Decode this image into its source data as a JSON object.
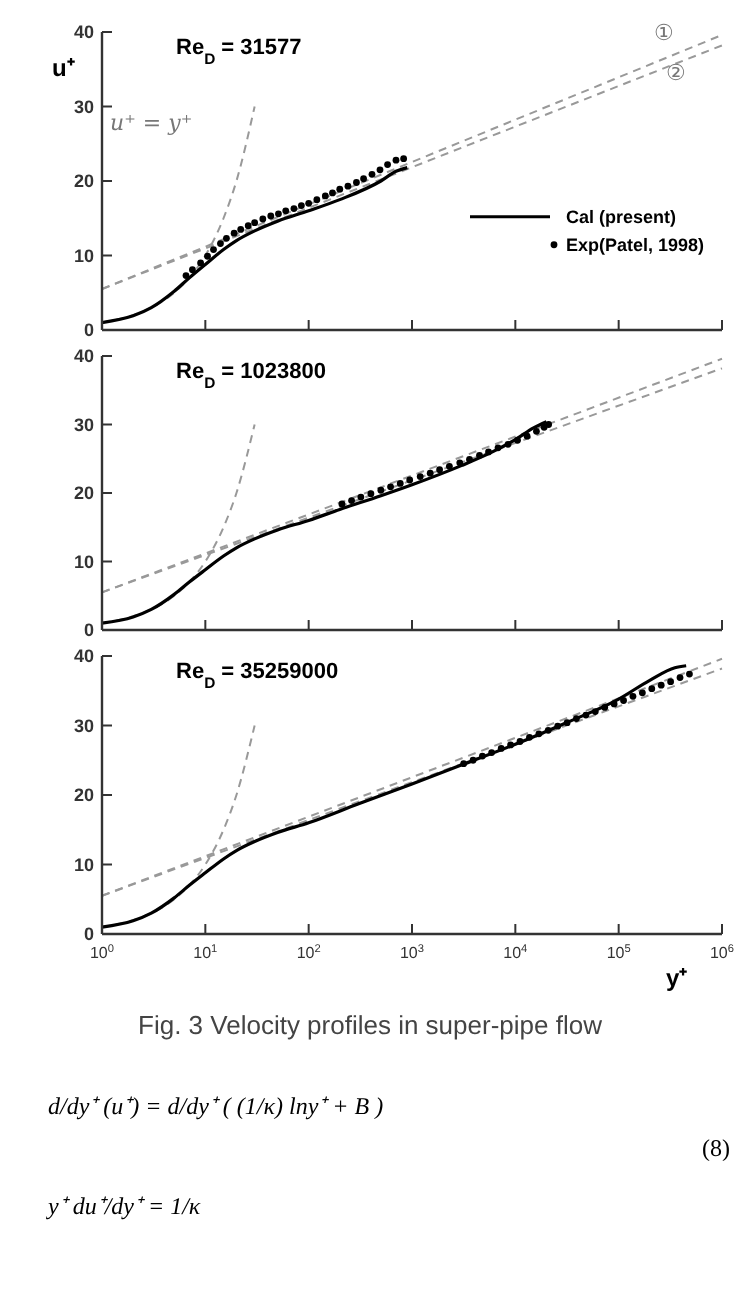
{
  "chart_data": [
    {
      "type": "line",
      "title": "Re$_{D}$ = 31577",
      "ylabel": "u⁺",
      "log": "x",
      "xlim": [
        1,
        1000000
      ],
      "ylim": [
        0,
        40
      ],
      "xticks": [
        {
          "value": 1,
          "label": null
        },
        {
          "value": 10,
          "label": null
        },
        {
          "value": 100,
          "label": null
        },
        {
          "value": 1000,
          "label": null
        },
        {
          "value": 10000,
          "label": null
        },
        {
          "value": 100000,
          "label": null
        },
        {
          "value": 1000000,
          "label": null
        }
      ],
      "yticks": [
        0,
        10,
        20,
        30,
        40
      ],
      "tick_labels": "y",
      "legend": "right",
      "annotations": [
        "u⁺ = y⁺",
        "①",
        "②"
      ],
      "series": [
        {
          "color": "#999999",
          "line_style": "dashed",
          "x": [
            1,
            1.5,
            2,
            3,
            5,
            7,
            10,
            15,
            20,
            30
          ],
          "values": [
            1,
            1.5,
            2,
            3,
            5,
            7,
            10,
            15,
            20,
            30
          ]
        },
        {
          "color": "#999999",
          "line_style": "dashed",
          "x": [
            1,
            1000000
          ],
          "values": [
            5.5,
            39.6
          ]
        },
        {
          "color": "#999999",
          "line_style": "dashed",
          "x": [
            1,
            1000000
          ],
          "values": [
            5.5,
            38.2
          ]
        },
        {
          "name": "Cal (present)",
          "color": "#000000",
          "line_style": "solid",
          "x": [
            1,
            2,
            3,
            5,
            7,
            10,
            15,
            20,
            30,
            50,
            100,
            200,
            500,
            700,
            900
          ],
          "values": [
            1,
            1.9,
            3,
            5.2,
            7,
            8.8,
            10.8,
            12,
            13.3,
            14.6,
            16,
            17.5,
            20,
            21.3,
            21.8
          ]
        },
        {
          "type": "scatter",
          "name": "Exp(Patel, 1998)",
          "color": "#000000",
          "marker": "circle",
          "x": [
            6.5,
            7.5,
            9,
            10.5,
            12,
            14,
            16,
            19,
            22,
            26,
            30,
            36,
            43,
            51,
            60,
            72,
            85,
            100,
            120,
            145,
            170,
            200,
            240,
            290,
            340,
            410,
            490,
            580,
            700,
            830
          ],
          "values": [
            7.3,
            8.1,
            9,
            9.9,
            10.8,
            11.6,
            12.3,
            13,
            13.5,
            14,
            14.4,
            14.9,
            15.3,
            15.6,
            16,
            16.3,
            16.7,
            17,
            17.5,
            18,
            18.4,
            18.9,
            19.3,
            19.8,
            20.3,
            20.9,
            21.5,
            22.2,
            22.8,
            23
          ]
        }
      ]
    },
    {
      "type": "line",
      "title": "Re$_{D}$ = 1023800",
      "log": "x",
      "xlim": [
        1,
        1000000
      ],
      "ylim": [
        0,
        40
      ],
      "xticks": [
        {
          "value": 1,
          "label": null
        },
        {
          "value": 10,
          "label": null
        },
        {
          "value": 100,
          "label": null
        },
        {
          "value": 1000,
          "label": null
        },
        {
          "value": 10000,
          "label": null
        },
        {
          "value": 100000,
          "label": null
        },
        {
          "value": 1000000,
          "label": null
        }
      ],
      "yticks": [
        0,
        10,
        20,
        30,
        40
      ],
      "tick_labels": "y",
      "series": [
        {
          "color": "#999999",
          "line_style": "dashed",
          "x": [
            1,
            1.5,
            2,
            3,
            5,
            7,
            10,
            15,
            20,
            30
          ],
          "values": [
            1,
            1.5,
            2,
            3,
            5,
            7,
            10,
            15,
            20,
            30
          ]
        },
        {
          "color": "#999999",
          "line_style": "dashed",
          "x": [
            1,
            1000000
          ],
          "values": [
            5.5,
            39.6
          ]
        },
        {
          "color": "#999999",
          "line_style": "dashed",
          "x": [
            1,
            1000000
          ],
          "values": [
            5.5,
            38.2
          ]
        },
        {
          "color": "#000000",
          "line_style": "solid",
          "x": [
            1,
            2,
            3,
            5,
            7,
            10,
            15,
            20,
            30,
            50,
            100,
            200,
            500,
            1000,
            3000,
            6000,
            10000,
            15000,
            20000
          ],
          "values": [
            1,
            1.9,
            3,
            5.2,
            7,
            8.8,
            10.8,
            12,
            13.3,
            14.6,
            16,
            17.6,
            19.6,
            21.2,
            24,
            26,
            27.8,
            29.5,
            30.4
          ]
        },
        {
          "type": "scatter",
          "color": "#000000",
          "marker": "circle",
          "x": [
            210,
            260,
            320,
            400,
            500,
            620,
            770,
            950,
            1200,
            1500,
            1850,
            2300,
            2900,
            3600,
            4500,
            5500,
            6800,
            8500,
            10500,
            13000,
            16000,
            19000,
            21000
          ],
          "values": [
            18.4,
            18.9,
            19.4,
            19.9,
            20.4,
            20.9,
            21.4,
            21.9,
            22.4,
            22.9,
            23.4,
            23.9,
            24.4,
            24.9,
            25.5,
            26,
            26.6,
            27.1,
            27.7,
            28.3,
            29,
            29.6,
            30
          ]
        }
      ]
    },
    {
      "type": "line",
      "title": "Re$_{D}$ = 35259000",
      "xlabel": "y⁺",
      "log": "x",
      "xlim": [
        1,
        1000000
      ],
      "ylim": [
        0,
        40
      ],
      "xticks": [
        {
          "value": 1,
          "label": "10$^{0}$"
        },
        {
          "value": 10,
          "label": "10$^{1}$"
        },
        {
          "value": 100,
          "label": "10$^{2}$"
        },
        {
          "value": 1000,
          "label": "10$^{3}$"
        },
        {
          "value": 10000,
          "label": "10$^{4}$"
        },
        {
          "value": 100000,
          "label": "10$^{5}$"
        },
        {
          "value": 1000000,
          "label": "10$^{6}$"
        }
      ],
      "yticks": [
        0,
        10,
        20,
        30,
        40
      ],
      "annotations": [
        "Fig. 3 Velocity profiles in super-pipe flow",
        "d/dy⁺ (u⁺) = d/dy⁺ ( (1/κ) lny⁺ + B )",
        "(8)",
        "y⁺ du⁺/dy⁺ = 1/κ"
      ],
      "series": [
        {
          "color": "#999999",
          "line_style": "dashed",
          "x": [
            1,
            1.5,
            2,
            3,
            5,
            7,
            10,
            15,
            20,
            30
          ],
          "values": [
            1,
            1.5,
            2,
            3,
            5,
            7,
            10,
            15,
            20,
            30
          ]
        },
        {
          "color": "#999999",
          "line_style": "dashed",
          "x": [
            1,
            1000000
          ],
          "values": [
            5.5,
            39.6
          ]
        },
        {
          "color": "#999999",
          "line_style": "dashed",
          "x": [
            1,
            1000000
          ],
          "values": [
            5.5,
            38.2
          ]
        },
        {
          "color": "#000000",
          "line_style": "solid",
          "x": [
            1,
            2,
            3,
            5,
            7,
            10,
            15,
            20,
            30,
            50,
            100,
            300,
            1000,
            3000,
            10000,
            30000,
            100000,
            200000,
            350000,
            450000
          ],
          "values": [
            1,
            1.9,
            3,
            5.2,
            7,
            8.8,
            10.8,
            12,
            13.3,
            14.6,
            16,
            18.7,
            21.6,
            24.3,
            27.3,
            30.3,
            33.8,
            36.5,
            38.3,
            38.6
          ]
        },
        {
          "type": "scatter",
          "color": "#000000",
          "marker": "circle",
          "x": [
            3162,
            3900,
            4800,
            5900,
            7300,
            9000,
            11100,
            13700,
            16900,
            20800,
            25700,
            31700,
            39000,
            48200,
            59400,
            73300,
            90400,
            111500,
            137500,
            169600,
            209200,
            258000,
            318200,
            392500,
            484000
          ],
          "values": [
            24.5,
            25,
            25.6,
            26.1,
            26.7,
            27.2,
            27.7,
            28.3,
            28.8,
            29.3,
            29.9,
            30.4,
            31,
            31.5,
            32,
            32.6,
            33.1,
            33.6,
            34.2,
            34.7,
            35.3,
            35.8,
            36.3,
            36.9,
            37.4
          ]
        }
      ]
    }
  ]
}
